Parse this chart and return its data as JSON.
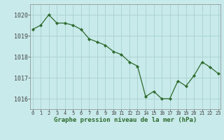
{
  "x": [
    0,
    1,
    2,
    3,
    4,
    5,
    6,
    7,
    8,
    9,
    10,
    11,
    12,
    13,
    14,
    15,
    16,
    17,
    18,
    19,
    20,
    21,
    22,
    23
  ],
  "y": [
    1019.3,
    1019.5,
    1020.0,
    1019.6,
    1019.6,
    1019.5,
    1019.3,
    1018.85,
    1018.7,
    1018.55,
    1018.25,
    1018.1,
    1017.75,
    1017.55,
    1016.1,
    1016.35,
    1016.0,
    1016.0,
    1016.85,
    1016.6,
    1017.1,
    1017.75,
    1017.5,
    1017.2
  ],
  "line_color": "#2d6a2d",
  "marker_color": "#2d6a2d",
  "bg_color": "#c8eaea",
  "grid_color": "#aad0d0",
  "ylabel_values": [
    1016,
    1017,
    1018,
    1019,
    1020
  ],
  "xlabel_values": [
    0,
    1,
    2,
    3,
    4,
    5,
    6,
    7,
    8,
    9,
    10,
    11,
    12,
    13,
    14,
    15,
    16,
    17,
    18,
    19,
    20,
    21,
    22,
    23
  ],
  "xlabel": "Graphe pression niveau de la mer (hPa)",
  "ylim": [
    1015.5,
    1020.5
  ],
  "xlim": [
    -0.3,
    23.3
  ],
  "figsize": [
    3.2,
    2.0
  ],
  "dpi": 100
}
